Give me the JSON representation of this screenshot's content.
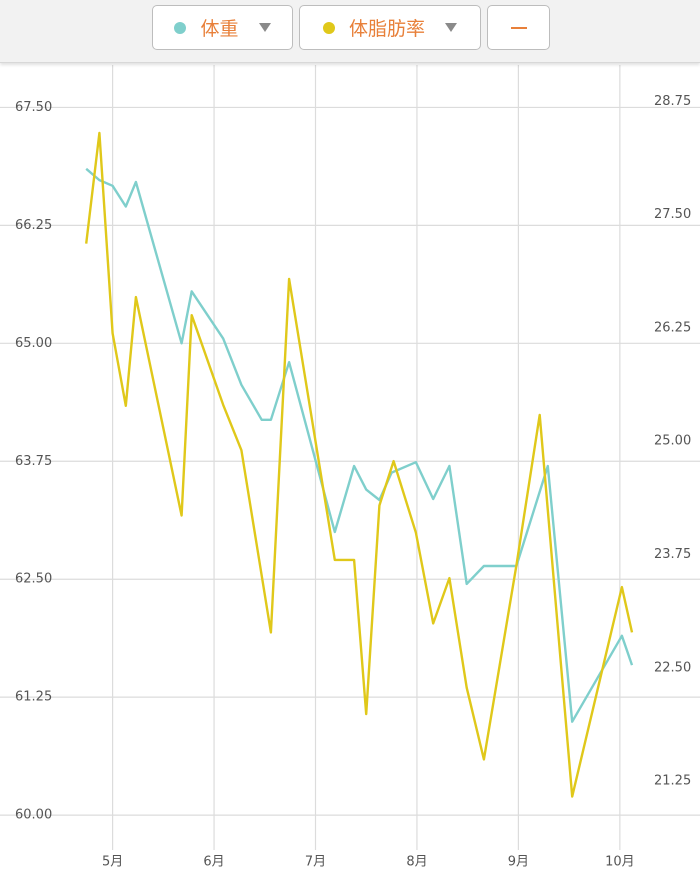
{
  "chart_data": {
    "type": "line",
    "xlim": [
      3.89,
      10.79
    ],
    "xticks": [
      {
        "value": 5,
        "label": "5月"
      },
      {
        "value": 6,
        "label": "6月"
      },
      {
        "value": 7,
        "label": "7月"
      },
      {
        "value": 8,
        "label": "8月"
      },
      {
        "value": 9,
        "label": "9月"
      },
      {
        "value": 10,
        "label": "10月"
      }
    ],
    "ylim": [
      59.63,
      67.95
    ],
    "yticks": [
      {
        "value": 60,
        "label": "60.00"
      },
      {
        "value": 61.25,
        "label": "61.25"
      },
      {
        "value": 62.5,
        "label": "62.50"
      },
      {
        "value": 63.75,
        "label": "63.75"
      },
      {
        "value": 65,
        "label": "65.00"
      },
      {
        "value": 66.25,
        "label": "66.25"
      },
      {
        "value": 67.5,
        "label": "67.50"
      }
    ],
    "y2lim": [
      20.49,
      29.15
    ],
    "y2ticks": [
      {
        "value": 21.25,
        "label": "21.25"
      },
      {
        "value": 22.5,
        "label": "22.50"
      },
      {
        "value": 23.75,
        "label": "23.75"
      },
      {
        "value": 25,
        "label": "25.00"
      },
      {
        "value": 26.25,
        "label": "26.25"
      },
      {
        "value": 27.5,
        "label": "27.50"
      },
      {
        "value": 28.75,
        "label": "28.75"
      }
    ],
    "grid": true,
    "series": [
      {
        "name": "体重",
        "color": "#7fcfcc",
        "x": [
          4.74,
          4.87,
          5.0,
          5.13,
          5.23,
          5.68,
          5.78,
          6.09,
          6.27,
          6.47,
          6.56,
          6.74,
          7.19,
          7.38,
          7.5,
          7.63,
          7.75,
          7.99,
          8.16,
          8.32,
          8.49,
          8.66,
          8.98,
          9.29,
          9.53,
          10.02,
          10.12
        ],
        "values": [
          66.85,
          66.73,
          66.67,
          66.45,
          66.71,
          65.0,
          65.55,
          65.05,
          64.56,
          64.19,
          64.19,
          64.8,
          63.0,
          63.7,
          63.45,
          63.34,
          63.63,
          63.74,
          63.35,
          63.7,
          62.45,
          62.64,
          62.64,
          63.7,
          60.99,
          61.9,
          61.59
        ]
      },
      {
        "name": "体脂肪率",
        "color": "#e0c81a",
        "axis": "y2",
        "x": [
          4.74,
          4.87,
          5.0,
          5.13,
          5.23,
          5.68,
          5.78,
          6.09,
          6.27,
          6.56,
          6.74,
          7.19,
          7.38,
          7.5,
          7.63,
          7.77,
          7.99,
          8.16,
          8.32,
          8.49,
          8.66,
          8.98,
          9.21,
          9.53,
          10.02,
          10.12
        ],
        "values": [
          27.18,
          28.4,
          26.19,
          25.39,
          26.59,
          24.18,
          26.39,
          25.4,
          24.9,
          22.89,
          26.79,
          23.69,
          23.69,
          21.99,
          24.29,
          24.78,
          23.99,
          22.99,
          23.49,
          22.28,
          21.49,
          23.63,
          25.29,
          21.08,
          23.39,
          22.89
        ]
      }
    ]
  }
}
